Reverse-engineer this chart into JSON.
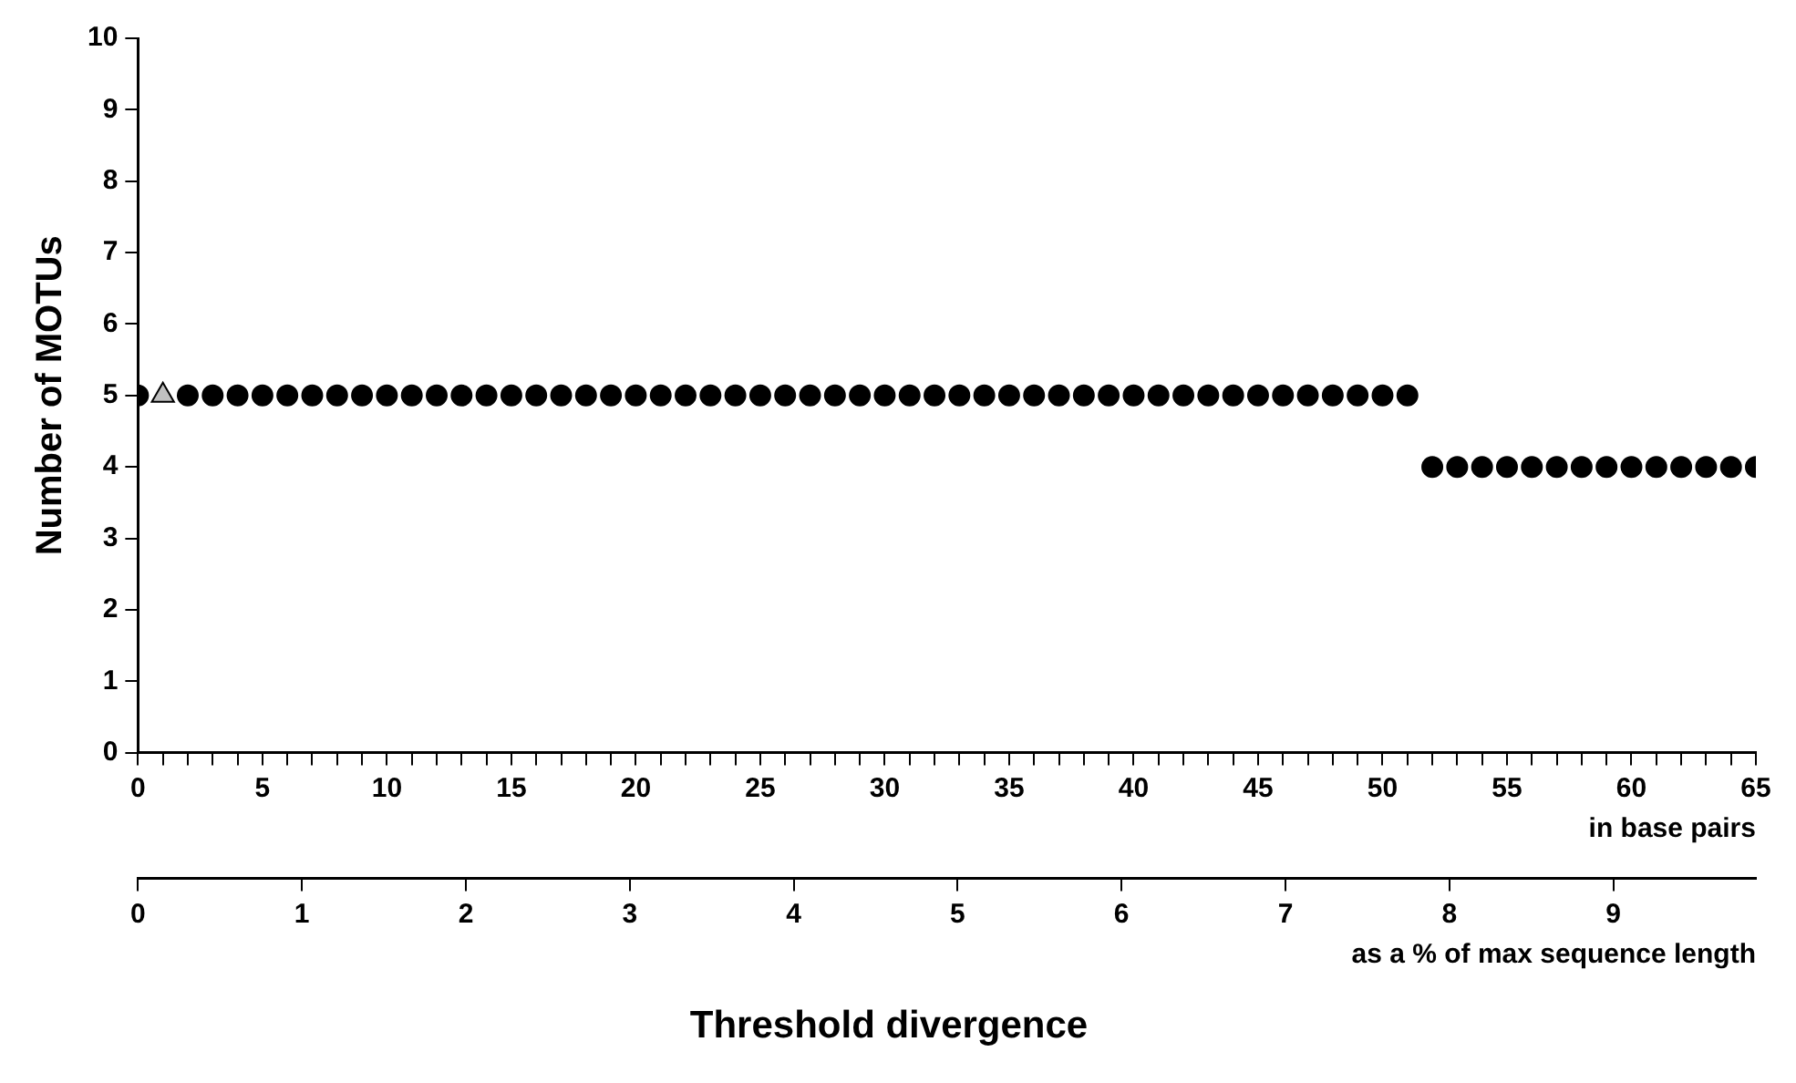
{
  "chart_data": {
    "type": "scatter",
    "xlabel": "Threshold divergence",
    "ylabel": "Number of MOTUs",
    "x2label": "as a % of max sequence length",
    "annotations": [
      "in base pairs"
    ],
    "series": [
      {
        "color": "#000000",
        "marker": "circle",
        "x": [
          0,
          2,
          3,
          4,
          5,
          6,
          7,
          8,
          9,
          10,
          11,
          12,
          13,
          14,
          15,
          16,
          17,
          18,
          19,
          20,
          21,
          22,
          23,
          24,
          25,
          26,
          27,
          28,
          29,
          30,
          31,
          32,
          33,
          34,
          35,
          36,
          37,
          38,
          39,
          40,
          41,
          42,
          43,
          44,
          45,
          46,
          47,
          48,
          49,
          50,
          51,
          52,
          53,
          54,
          55,
          56,
          57,
          58,
          59,
          60,
          61,
          62,
          63,
          64,
          65
        ],
        "values": [
          5,
          5,
          5,
          5,
          5,
          5,
          5,
          5,
          5,
          5,
          5,
          5,
          5,
          5,
          5,
          5,
          5,
          5,
          5,
          5,
          5,
          5,
          5,
          5,
          5,
          5,
          5,
          5,
          5,
          5,
          5,
          5,
          5,
          5,
          5,
          5,
          5,
          5,
          5,
          5,
          5,
          5,
          5,
          5,
          5,
          5,
          5,
          5,
          5,
          5,
          5,
          4,
          4,
          4,
          4,
          4,
          4,
          4,
          4,
          4,
          4,
          4,
          4,
          4,
          4
        ]
      },
      {
        "color": "#c0c0c0",
        "marker": "triangle",
        "x": [
          1
        ],
        "values": [
          5
        ]
      }
    ],
    "xlim": [
      0,
      65
    ],
    "xticks": [
      0,
      {
        "value": 1,
        "label": null
      },
      {
        "value": 2,
        "label": null
      },
      {
        "value": 3,
        "label": null
      },
      {
        "value": 4,
        "label": null
      },
      5,
      {
        "value": 6,
        "label": null
      },
      {
        "value": 7,
        "label": null
      },
      {
        "value": 8,
        "label": null
      },
      {
        "value": 9,
        "label": null
      },
      10,
      {
        "value": 11,
        "label": null
      },
      {
        "value": 12,
        "label": null
      },
      {
        "value": 13,
        "label": null
      },
      {
        "value": 14,
        "label": null
      },
      15,
      {
        "value": 16,
        "label": null
      },
      {
        "value": 17,
        "label": null
      },
      {
        "value": 18,
        "label": null
      },
      {
        "value": 19,
        "label": null
      },
      20,
      {
        "value": 21,
        "label": null
      },
      {
        "value": 22,
        "label": null
      },
      {
        "value": 23,
        "label": null
      },
      {
        "value": 24,
        "label": null
      },
      25,
      {
        "value": 26,
        "label": null
      },
      {
        "value": 27,
        "label": null
      },
      {
        "value": 28,
        "label": null
      },
      {
        "value": 29,
        "label": null
      },
      30,
      {
        "value": 31,
        "label": null
      },
      {
        "value": 32,
        "label": null
      },
      {
        "value": 33,
        "label": null
      },
      {
        "value": 34,
        "label": null
      },
      35,
      {
        "value": 36,
        "label": null
      },
      {
        "value": 37,
        "label": null
      },
      {
        "value": 38,
        "label": null
      },
      {
        "value": 39,
        "label": null
      },
      40,
      {
        "value": 41,
        "label": null
      },
      {
        "value": 42,
        "label": null
      },
      {
        "value": 43,
        "label": null
      },
      {
        "value": 44,
        "label": null
      },
      45,
      {
        "value": 46,
        "label": null
      },
      {
        "value": 47,
        "label": null
      },
      {
        "value": 48,
        "label": null
      },
      {
        "value": 49,
        "label": null
      },
      50,
      {
        "value": 51,
        "label": null
      },
      {
        "value": 52,
        "label": null
      },
      {
        "value": 53,
        "label": null
      },
      {
        "value": 54,
        "label": null
      },
      55,
      {
        "value": 56,
        "label": null
      },
      {
        "value": 57,
        "label": null
      },
      {
        "value": 58,
        "label": null
      },
      {
        "value": 59,
        "label": null
      },
      60,
      {
        "value": 61,
        "label": null
      },
      {
        "value": 62,
        "label": null
      },
      {
        "value": 63,
        "label": null
      },
      {
        "value": 64,
        "label": null
      },
      65
    ],
    "x2lim": [
      0,
      9.87
    ],
    "x2ticks": [
      0,
      1,
      2,
      3,
      4,
      5,
      6,
      7,
      8,
      9
    ],
    "ylim": [
      0,
      10
    ],
    "yticks": [
      0,
      1,
      2,
      3,
      4,
      5,
      6,
      7,
      8,
      9,
      10
    ],
    "grid": false,
    "legend": false
  }
}
